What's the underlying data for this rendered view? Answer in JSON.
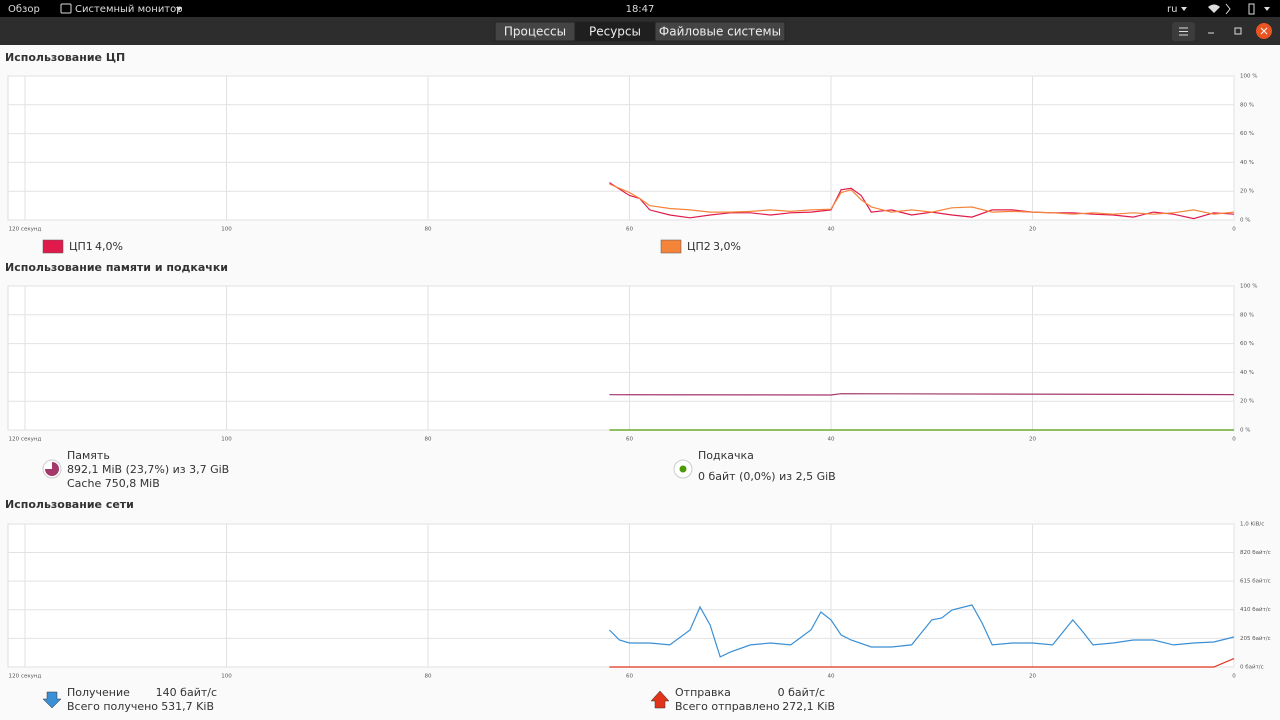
{
  "top_bar": {
    "activities": "Обзор",
    "app_menu": "Системный монитор",
    "clock": "18:47",
    "language": "ru"
  },
  "tabs": [
    {
      "label": "Процессы",
      "active": false
    },
    {
      "label": "Ресурсы",
      "active": true
    },
    {
      "label": "Файловые системы",
      "active": false
    }
  ],
  "chart_data": [
    {
      "type": "line",
      "title": "Использование ЦП",
      "x": [
        62,
        60,
        59,
        58,
        56,
        54,
        52,
        50,
        48,
        46,
        44,
        42,
        40,
        39,
        38,
        37,
        36,
        34,
        32,
        30,
        28,
        26,
        24,
        22,
        20,
        18,
        16,
        14,
        12,
        10,
        8,
        6,
        4,
        2,
        0
      ],
      "xlim": [
        120,
        0
      ],
      "xticks": [
        {
          "value": 120,
          "label": "120 секунд"
        },
        100,
        80,
        60,
        40,
        20,
        0
      ],
      "ylim": [
        0,
        100
      ],
      "yticks": [
        {
          "value": 0,
          "label": "0 %"
        },
        {
          "value": 20,
          "label": "20 %"
        },
        {
          "value": 40,
          "label": "40 %"
        },
        {
          "value": 60,
          "label": "60 %"
        },
        {
          "value": 80,
          "label": "80 %"
        },
        {
          "value": 100,
          "label": "100 %"
        }
      ],
      "grid": true,
      "series": [
        {
          "name": "ЦП1",
          "color": "#e01b4c",
          "legend_value": "4,0%",
          "values": [
            26,
            17,
            15,
            7,
            3.5,
            1.5,
            3.5,
            5,
            5,
            3.5,
            5,
            5.5,
            7,
            21,
            22,
            17,
            5.5,
            7,
            3.5,
            5.5,
            3.5,
            2,
            7,
            7,
            5.5,
            5,
            5,
            4,
            3.5,
            2,
            5.5,
            4,
            1,
            5,
            4
          ]
        },
        {
          "name": "ЦП2",
          "color": "#f5843b",
          "legend_value": "3,0%",
          "values": [
            25,
            19,
            15,
            10,
            8,
            7,
            5.5,
            5.5,
            6,
            7,
            6,
            7,
            7.5,
            19,
            21,
            14,
            9,
            5.5,
            7,
            5.5,
            8.5,
            9,
            5.5,
            6,
            5.5,
            5,
            4,
            5,
            4,
            5,
            4,
            5,
            7,
            4,
            5.5
          ]
        }
      ]
    },
    {
      "type": "line",
      "title": "Использование памяти и подкачки",
      "x": [
        62,
        40,
        39,
        0
      ],
      "xlim": [
        120,
        0
      ],
      "xticks": [
        {
          "value": 120,
          "label": "120 секунд"
        },
        100,
        80,
        60,
        40,
        20,
        0
      ],
      "ylim": [
        0,
        100
      ],
      "yticks": [
        {
          "value": 0,
          "label": "0 %"
        },
        {
          "value": 20,
          "label": "20 %"
        },
        {
          "value": 40,
          "label": "40 %"
        },
        {
          "value": 60,
          "label": "60 %"
        },
        {
          "value": 80,
          "label": "80 %"
        },
        {
          "value": 100,
          "label": "100 %"
        }
      ],
      "grid": true,
      "series": [
        {
          "name": "Память",
          "color": "#a3386c",
          "details": [
            "892,1 MiB (23,7%) из 3,7 GiB",
            "Cache 750,8 MiB"
          ],
          "values": [
            24.5,
            24.3,
            25.2,
            24.6
          ]
        },
        {
          "name": "Подкачка",
          "color": "#4e9a06",
          "details": [
            "0 байт (0,0%) из 2,5 GiB"
          ],
          "values": [
            0,
            0,
            0,
            0
          ]
        }
      ]
    },
    {
      "type": "line",
      "title": "Использование сети",
      "x": [
        62,
        61,
        60,
        58,
        56,
        54,
        53,
        52,
        51,
        50,
        48,
        46,
        44,
        42,
        41,
        40,
        39,
        38,
        36,
        34,
        32,
        30,
        29,
        28,
        26,
        25,
        24,
        22,
        20,
        18,
        16,
        15,
        14,
        12,
        10,
        8,
        6,
        4,
        2,
        0
      ],
      "xlim": [
        120,
        0
      ],
      "xticks": [
        {
          "value": 120,
          "label": "120 секунд"
        },
        100,
        80,
        60,
        40,
        20,
        0
      ],
      "ylim": [
        0,
        1024
      ],
      "yticks": [
        {
          "value": 0,
          "label": "0 байт/с"
        },
        {
          "value": 205,
          "label": "205 байт/с"
        },
        {
          "value": 410,
          "label": "410 байт/с"
        },
        {
          "value": 615,
          "label": "615 байт/с"
        },
        {
          "value": 820,
          "label": "820 байт/с"
        },
        {
          "value": 1024,
          "label": "1,0 KiB/с"
        }
      ],
      "grid": true,
      "series": [
        {
          "name": "Получение",
          "color": "#3b8fd4",
          "rate": "140 байт/с",
          "total_label": "Всего получено",
          "total": "531,7 KiB",
          "values": [
            265,
            193,
            172,
            172,
            158,
            265,
            430,
            301,
            72,
            107,
            158,
            172,
            158,
            265,
            394,
            337,
            229,
            193,
            143,
            143,
            158,
            337,
            351,
            408,
            444,
            315,
            158,
            172,
            172,
            158,
            337,
            251,
            158,
            172,
            193,
            193,
            158,
            172,
            179,
            215
          ]
        },
        {
          "name": "Отправка",
          "color": "#e0341b",
          "rate": "0 байт/с",
          "total_label": "Всего отправлено",
          "total": "272,1 KiB",
          "values": [
            0,
            0,
            0,
            0,
            0,
            0,
            0,
            0,
            0,
            0,
            0,
            0,
            0,
            0,
            0,
            0,
            0,
            0,
            0,
            0,
            0,
            0,
            0,
            0,
            0,
            0,
            0,
            0,
            0,
            0,
            0,
            0,
            0,
            0,
            0,
            0,
            0,
            0,
            0,
            60
          ]
        }
      ]
    }
  ]
}
